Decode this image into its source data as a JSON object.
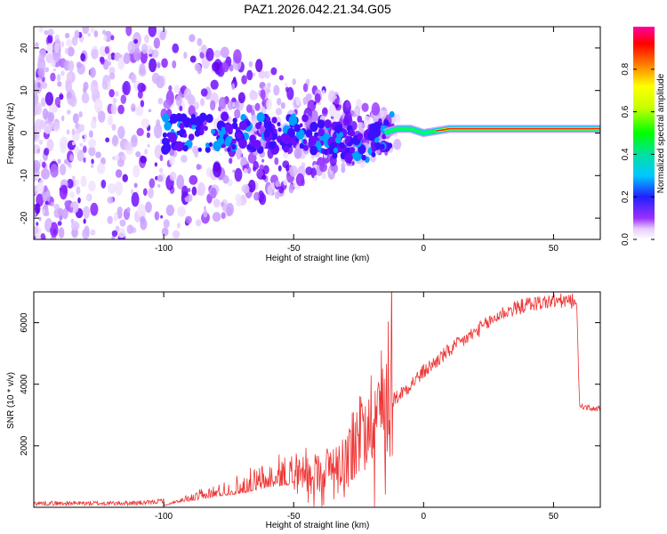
{
  "title": "PAZ1.2026.042.21.34.G05",
  "chart_data": [
    {
      "type": "heatmap",
      "xlabel": "Height of straight line (km)",
      "ylabel": "Frequency (Hz)",
      "xlim": [
        -150,
        68
      ],
      "ylim": [
        -25,
        25
      ],
      "xticks": [
        -100,
        -50,
        0,
        50
      ],
      "yticks": [
        -20,
        -10,
        0,
        10,
        20
      ],
      "colorbar": {
        "label": "Normalized spectral amplitude",
        "range": [
          0,
          1
        ],
        "ticks": [
          0.0,
          0.2,
          0.4,
          0.6,
          0.8
        ],
        "tick_labels": [
          "0.0",
          "0.2",
          "0.4",
          "0.6",
          "0.8"
        ]
      },
      "description_series": [
        {
          "name": "dominant frequency track",
          "x": [
            -100,
            -80,
            -60,
            -45,
            -35,
            -25,
            -20,
            -15,
            -10,
            -5,
            0,
            10,
            30,
            50,
            68
          ],
          "y": [
            0,
            0,
            0,
            0,
            -2,
            -3,
            -2,
            0,
            1,
            1,
            0,
            1,
            1,
            1,
            1
          ]
        }
      ]
    },
    {
      "type": "line",
      "xlabel": "Height of straight line (km)",
      "ylabel": "SNR (10 * v/v)",
      "xlim": [
        -150,
        68
      ],
      "ylim": [
        0,
        7000
      ],
      "xticks": [
        -100,
        -50,
        0,
        50
      ],
      "yticks": [
        2000,
        4000,
        6000
      ],
      "color": "#ee3333",
      "series": [
        {
          "name": "SNR",
          "x": [
            -150,
            -120,
            -105,
            -100,
            -95,
            -90,
            -80,
            -70,
            -60,
            -50,
            -40,
            -30,
            -25,
            -20,
            -15,
            -10,
            -5,
            0,
            10,
            20,
            30,
            40,
            50,
            58,
            59,
            60,
            65,
            68
          ],
          "y": [
            100,
            100,
            120,
            200,
            300,
            350,
            500,
            600,
            800,
            900,
            1100,
            1500,
            2200,
            2800,
            3300,
            3600,
            4000,
            4400,
            5100,
            5700,
            6300,
            6600,
            6700,
            6700,
            6500,
            3300,
            3200,
            3200
          ]
        }
      ]
    }
  ]
}
